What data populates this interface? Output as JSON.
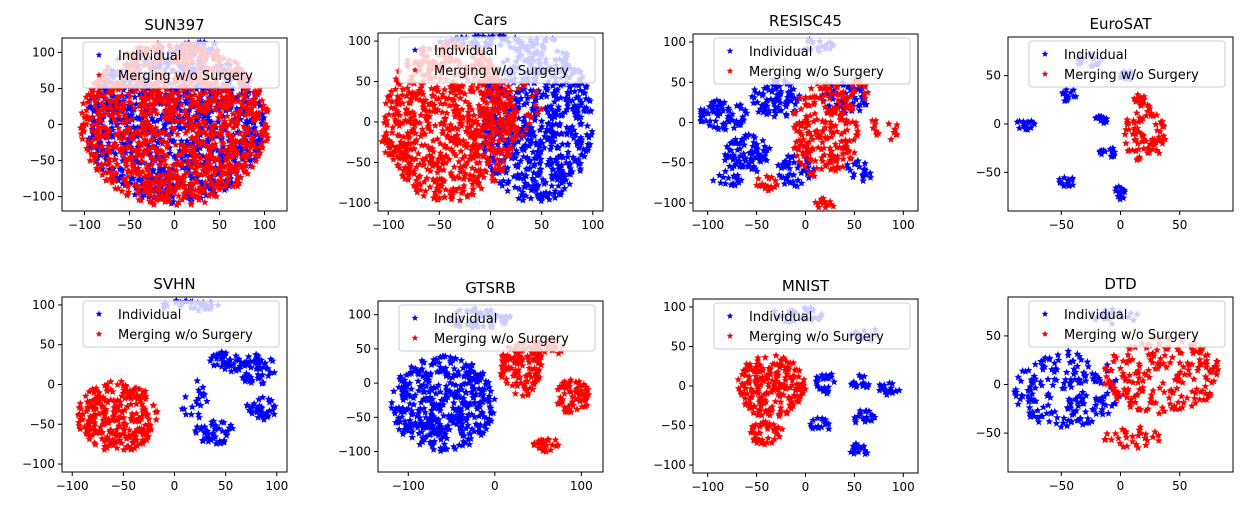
{
  "colors": {
    "individual": "#0000ff",
    "merging": "#ff0000",
    "legend_bg": "#ffffff",
    "axes": "#000000"
  },
  "legend": {
    "individual_label": "Individual",
    "merging_label": "Merging w/o Surgery",
    "placement": "top-right",
    "marker": "star"
  },
  "chart_data": [
    {
      "type": "scatter",
      "title": "SUN397",
      "xlim": [
        -125,
        125
      ],
      "ylim": [
        -120,
        120
      ],
      "xticks": [
        -100,
        -50,
        0,
        50,
        100
      ],
      "yticks": [
        -100,
        -50,
        0,
        50,
        100
      ],
      "series": [
        {
          "name": "Individual",
          "clusters": [
            [
              0,
              0,
              100,
              110,
              0.5
            ],
            [
              25,
              105,
              25,
              12,
              0.4
            ]
          ]
        },
        {
          "name": "Merging w/o Surgery",
          "clusters": [
            [
              0,
              0,
              105,
              115,
              0.55
            ]
          ]
        }
      ]
    },
    {
      "type": "scatter",
      "title": "Cars",
      "xlim": [
        -110,
        110
      ],
      "ylim": [
        -110,
        110
      ],
      "xticks": [
        -100,
        -50,
        0,
        50,
        100
      ],
      "yticks": [
        -100,
        -50,
        0,
        50,
        100
      ],
      "series": [
        {
          "name": "Individual",
          "clusters": [
            [
              45,
              0,
              55,
              100,
              0.7
            ],
            [
              10,
              100,
              60,
              8,
              0.7
            ]
          ]
        },
        {
          "name": "Merging w/o Surgery",
          "clusters": [
            [
              -40,
              0,
              65,
              100,
              0.7
            ],
            [
              20,
              20,
              30,
              40,
              0.3
            ],
            [
              -90,
              -30,
              20,
              15,
              0.5
            ]
          ]
        }
      ]
    },
    {
      "type": "scatter",
      "title": "RESISC45",
      "xlim": [
        -115,
        115
      ],
      "ylim": [
        -110,
        110
      ],
      "xticks": [
        -100,
        -50,
        0,
        50,
        100
      ],
      "yticks": [
        -100,
        -50,
        0,
        50,
        100
      ],
      "series": [
        {
          "name": "Individual",
          "clusters": [
            [
              -85,
              10,
              25,
              20,
              0.8
            ],
            [
              -60,
              -40,
              25,
              25,
              0.8
            ],
            [
              -30,
              30,
              25,
              25,
              0.8
            ],
            [
              -10,
              -60,
              20,
              20,
              0.7
            ],
            [
              40,
              30,
              25,
              20,
              0.7
            ],
            [
              55,
              -60,
              15,
              15,
              0.6
            ],
            [
              10,
              95,
              20,
              10,
              0.6
            ],
            [
              -80,
              -70,
              15,
              10,
              0.7
            ]
          ]
        },
        {
          "name": "Merging w/o Surgery",
          "clusters": [
            [
              20,
              -10,
              35,
              60,
              0.6
            ],
            [
              -40,
              -75,
              12,
              10,
              0.8
            ],
            [
              20,
              -100,
              10,
              8,
              0.9
            ],
            [
              80,
              -10,
              15,
              20,
              0.3
            ],
            [
              50,
              40,
              15,
              15,
              0.5
            ]
          ]
        }
      ]
    },
    {
      "type": "scatter",
      "title": "EuroSAT",
      "xlim": [
        -95,
        95
      ],
      "ylim": [
        -90,
        90
      ],
      "xticks": [
        -50,
        0,
        50
      ],
      "yticks": [
        -50,
        0,
        50
      ],
      "series": [
        {
          "name": "Individual",
          "clusters": [
            [
              -80,
              0,
              8,
              6,
              0.9
            ],
            [
              -45,
              30,
              8,
              8,
              0.9
            ],
            [
              -45,
              -60,
              8,
              5,
              0.9
            ],
            [
              -15,
              5,
              6,
              5,
              0.8
            ],
            [
              -10,
              -30,
              8,
              6,
              0.8
            ],
            [
              0,
              -70,
              5,
              8,
              0.9
            ],
            [
              -25,
              65,
              12,
              8,
              0.9
            ],
            [
              5,
              50,
              6,
              6,
              0.9
            ]
          ]
        },
        {
          "name": "Merging w/o Surgery",
          "clusters": [
            [
              20,
              -10,
              18,
              30,
              0.85
            ],
            [
              15,
              25,
              6,
              6,
              0.9
            ]
          ]
        }
      ]
    },
    {
      "type": "scatter",
      "title": "SVHN",
      "xlim": [
        -110,
        110
      ],
      "ylim": [
        -110,
        110
      ],
      "xticks": [
        -100,
        -50,
        0,
        50,
        100
      ],
      "yticks": [
        -100,
        -50,
        0,
        50,
        100
      ],
      "series": [
        {
          "name": "Individual",
          "clusters": [
            [
              80,
              20,
              20,
              20,
              0.85
            ],
            [
              85,
              -30,
              15,
              15,
              0.85
            ],
            [
              40,
              -60,
              20,
              15,
              0.85
            ],
            [
              50,
              30,
              15,
              15,
              0.85
            ],
            [
              15,
              100,
              30,
              8,
              0.7
            ],
            [
              20,
              -20,
              15,
              25,
              0.3
            ]
          ]
        },
        {
          "name": "Merging w/o Surgery",
          "clusters": [
            [
              -55,
              -40,
              40,
              45,
              0.9
            ]
          ]
        }
      ]
    },
    {
      "type": "scatter",
      "title": "GTSRB",
      "xlim": [
        -135,
        125
      ],
      "ylim": [
        -130,
        120
      ],
      "xticks": [
        -100,
        0,
        100
      ],
      "yticks": [
        -100,
        -50,
        0,
        50,
        100
      ],
      "series": [
        {
          "name": "Individual",
          "clusters": [
            [
              -60,
              -30,
              60,
              70,
              0.6
            ],
            [
              -20,
              95,
              40,
              15,
              0.6
            ]
          ]
        },
        {
          "name": "Merging w/o Surgery",
          "clusters": [
            [
              30,
              20,
              25,
              40,
              0.7
            ],
            [
              90,
              -20,
              20,
              25,
              0.8
            ],
            [
              60,
              -90,
              15,
              12,
              0.8
            ],
            [
              60,
              50,
              20,
              15,
              0.6
            ]
          ]
        }
      ]
    },
    {
      "type": "scatter",
      "title": "MNIST",
      "xlim": [
        -115,
        115
      ],
      "ylim": [
        -110,
        110
      ],
      "xticks": [
        -100,
        -50,
        0,
        50,
        100
      ],
      "yticks": [
        -100,
        -50,
        0,
        50,
        100
      ],
      "series": [
        {
          "name": "Individual",
          "clusters": [
            [
              20,
              5,
              10,
              15,
              0.9
            ],
            [
              55,
              5,
              12,
              10,
              0.9
            ],
            [
              85,
              -5,
              12,
              10,
              0.9
            ],
            [
              60,
              -40,
              12,
              10,
              0.9
            ],
            [
              15,
              -50,
              10,
              10,
              0.9
            ],
            [
              55,
              -80,
              10,
              8,
              0.9
            ],
            [
              -10,
              90,
              30,
              10,
              0.6
            ],
            [
              60,
              65,
              15,
              10,
              0.6
            ]
          ]
        },
        {
          "name": "Merging w/o Surgery",
          "clusters": [
            [
              -35,
              0,
              35,
              40,
              0.9
            ],
            [
              -40,
              -60,
              18,
              15,
              0.9
            ]
          ]
        }
      ]
    },
    {
      "type": "scatter",
      "title": "DTD",
      "xlim": [
        -95,
        95
      ],
      "ylim": [
        -90,
        90
      ],
      "xticks": [
        -50,
        0,
        50
      ],
      "yticks": [
        -50,
        0,
        50
      ],
      "series": [
        {
          "name": "Individual",
          "clusters": [
            [
              -45,
              -5,
              45,
              40,
              0.6
            ],
            [
              -5,
              70,
              20,
              8,
              0.7
            ]
          ]
        },
        {
          "name": "Merging w/o Surgery",
          "clusters": [
            [
              35,
              10,
              50,
              40,
              0.6
            ],
            [
              10,
              -55,
              25,
              12,
              0.6
            ]
          ]
        }
      ]
    }
  ]
}
